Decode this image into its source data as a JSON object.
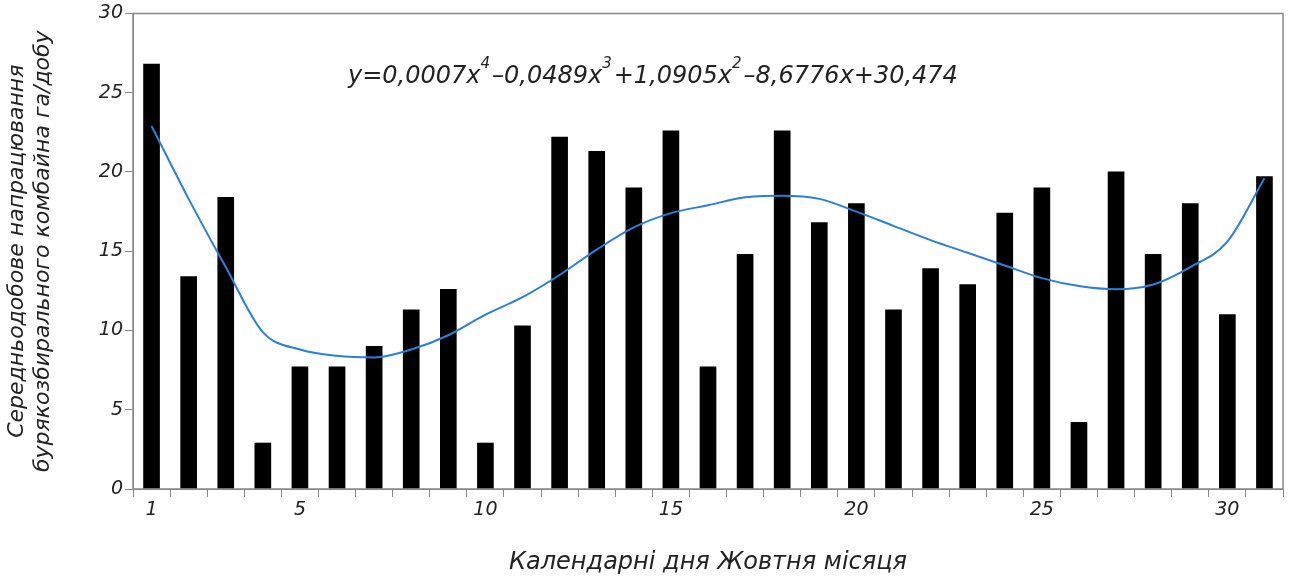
{
  "chart_data": {
    "type": "bar",
    "xlabel": "Календарні дня Жовтня місяця",
    "ylabel": "Середньодобове напрацювання бурякозбирального комбайна га/добу",
    "annotations": [
      "y=0,0007x$^{4}$–0,0489x$^{3}$+1,0905x$^{2}$–8,6776x+30,474"
    ],
    "categories": [
      "1",
      null,
      null,
      null,
      "5",
      null,
      null,
      null,
      null,
      "10",
      null,
      null,
      null,
      null,
      "15",
      null,
      null,
      null,
      null,
      "20",
      null,
      null,
      null,
      null,
      "25",
      null,
      null,
      null,
      null,
      "30",
      null
    ],
    "series": [
      {
        "color": "#000000",
        "values": [
          26.8,
          13.4,
          18.4,
          2.9,
          7.7,
          7.7,
          9.0,
          11.3,
          12.6,
          2.9,
          10.3,
          22.2,
          21.3,
          19.0,
          22.6,
          7.7,
          14.8,
          22.6,
          16.8,
          18.0,
          11.3,
          13.9,
          12.9,
          17.4,
          19.0,
          4.2,
          20.0,
          14.8,
          18.0,
          11.0,
          19.7
        ]
      },
      {
        "type": "line",
        "color": "#2a7fdc",
        "values": [
          22.9,
          18.3,
          14.0,
          9.9,
          8.8,
          8.4,
          8.3,
          8.8,
          9.7,
          11.0,
          12.1,
          13.5,
          15.1,
          16.5,
          17.4,
          17.9,
          18.4,
          18.5,
          18.3,
          17.5,
          16.6,
          15.7,
          14.9,
          14.1,
          13.3,
          12.8,
          12.6,
          12.9,
          14.0,
          15.6,
          19.6
        ]
      }
    ],
    "ylim": [
      0,
      30
    ],
    "yticks": [
      0,
      5,
      10,
      15,
      20,
      25,
      30
    ],
    "grid": false,
    "legend": false,
    "marker": "none"
  }
}
